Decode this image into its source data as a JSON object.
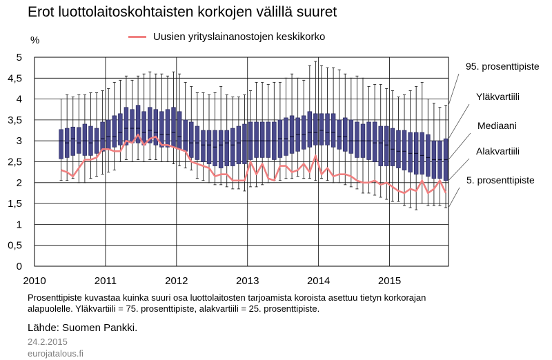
{
  "title": "Erot luottolaitoskohtaisten korkojen välillä suuret",
  "footer": {
    "note_line1": "Prosenttipiste kuvastaa kuinka suuri osa luottolaitosten tarjoamista koroista asettuu tietyn korkorajan",
    "note_line2": "alapuolelle. Yläkvartiili = 75. prosenttipiste, alakvartiili = 25. prosenttipiste.",
    "source": "Lähde: Suomen Pankki.",
    "date": "24.2.2015",
    "site": "eurojatalous.fi"
  },
  "colors": {
    "box_fill": "#4a4a8c",
    "box_stroke": "#1f1f55",
    "line": "#f08080",
    "whisker": "#222222",
    "grid": "#000000"
  },
  "chart_data": {
    "type": "line",
    "title": "Erot luottolaitoskohtaisten korkojen välillä suuret",
    "ylabel": "%",
    "ylim": [
      0,
      5
    ],
    "yticks": [
      "0",
      "0,5",
      "1",
      "1,5",
      "2",
      "2,5",
      "3",
      "3,5",
      "4",
      "4,5",
      "5"
    ],
    "xlim": [
      2010.0,
      2015.83
    ],
    "xticks": [
      "2010",
      "2011",
      "2012",
      "2013",
      "2014",
      "2015"
    ],
    "grid": true,
    "legend": "top",
    "box_labels": [
      "95. prosenttipiste",
      "Yläkvartiili",
      "Mediaani",
      "Alakvartiili",
      "5. prosenttipiste"
    ],
    "series_name": "Uusien yrityslainanostojen keskikorko",
    "months": [
      "2010-05",
      "2010-06",
      "2010-07",
      "2010-08",
      "2010-09",
      "2010-10",
      "2010-11",
      "2010-12",
      "2011-01",
      "2011-02",
      "2011-03",
      "2011-04",
      "2011-05",
      "2011-06",
      "2011-07",
      "2011-08",
      "2011-09",
      "2011-10",
      "2011-11",
      "2011-12",
      "2012-01",
      "2012-02",
      "2012-03",
      "2012-04",
      "2012-05",
      "2012-06",
      "2012-07",
      "2012-08",
      "2012-09",
      "2012-10",
      "2012-11",
      "2012-12",
      "2013-01",
      "2013-02",
      "2013-03",
      "2013-04",
      "2013-05",
      "2013-06",
      "2013-07",
      "2013-08",
      "2013-09",
      "2013-10",
      "2013-11",
      "2013-12",
      "2014-01",
      "2014-02",
      "2014-03",
      "2014-04",
      "2014-05",
      "2014-06",
      "2014-07",
      "2014-08",
      "2014-09",
      "2014-10",
      "2014-11",
      "2014-12",
      "2015-01",
      "2015-02",
      "2015-03",
      "2015-04",
      "2015-05",
      "2015-06",
      "2015-07",
      "2015-08",
      "2015-09",
      "2015-10"
    ],
    "p95": [
      4.0,
      4.1,
      4.05,
      4.1,
      4.1,
      4.15,
      4.15,
      4.2,
      4.25,
      4.4,
      4.45,
      4.55,
      4.45,
      4.55,
      4.6,
      4.65,
      4.6,
      4.6,
      4.55,
      4.65,
      4.6,
      4.4,
      4.3,
      4.15,
      4.15,
      4.1,
      4.15,
      4.3,
      4.1,
      4.05,
      4.05,
      4.1,
      4.2,
      4.4,
      4.4,
      4.35,
      4.4,
      4.4,
      4.5,
      4.6,
      4.5,
      4.45,
      4.8,
      4.9,
      4.8,
      4.75,
      4.75,
      4.7,
      4.6,
      4.5,
      4.55,
      4.5,
      4.3,
      4.35,
      4.35,
      4.25,
      4.2,
      4.05,
      4.1,
      4.2,
      4.3,
      4.4,
      4.0,
      3.9,
      3.8,
      3.85
    ],
    "q75": [
      3.27,
      3.3,
      3.33,
      3.32,
      3.4,
      3.35,
      3.3,
      3.45,
      3.5,
      3.6,
      3.65,
      3.8,
      3.75,
      3.85,
      3.7,
      3.8,
      3.75,
      3.7,
      3.75,
      3.8,
      3.7,
      3.5,
      3.45,
      3.35,
      3.25,
      3.25,
      3.25,
      3.25,
      3.25,
      3.3,
      3.35,
      3.4,
      3.45,
      3.45,
      3.45,
      3.45,
      3.45,
      3.5,
      3.55,
      3.6,
      3.55,
      3.6,
      3.7,
      3.65,
      3.65,
      3.65,
      3.65,
      3.5,
      3.55,
      3.5,
      3.45,
      3.4,
      3.45,
      3.45,
      3.35,
      3.35,
      3.3,
      3.25,
      3.25,
      3.2,
      3.2,
      3.2,
      3.15,
      3.0,
      3.0,
      3.05
    ],
    "median": [
      3.0,
      2.95,
      3.05,
      2.95,
      3.0,
      2.95,
      3.0,
      3.05,
      3.1,
      3.1,
      3.2,
      3.3,
      3.3,
      3.3,
      3.2,
      3.25,
      3.2,
      3.15,
      3.15,
      3.2,
      3.1,
      3.0,
      2.95,
      2.95,
      2.9,
      2.9,
      2.85,
      2.9,
      2.95,
      2.9,
      2.95,
      3.0,
      3.0,
      3.0,
      3.0,
      3.0,
      3.0,
      3.05,
      3.05,
      3.1,
      3.15,
      3.15,
      3.2,
      3.2,
      3.25,
      3.2,
      3.2,
      3.1,
      3.1,
      3.0,
      3.0,
      3.0,
      3.0,
      2.95,
      2.95,
      2.9,
      2.8,
      2.75,
      2.75,
      2.7,
      2.7,
      2.65,
      2.6,
      2.55,
      2.55,
      2.55
    ],
    "q25": [
      2.57,
      2.6,
      2.65,
      2.7,
      2.65,
      2.65,
      2.7,
      2.75,
      2.8,
      2.85,
      2.9,
      2.9,
      2.95,
      2.95,
      2.9,
      2.95,
      2.9,
      2.85,
      2.85,
      2.85,
      2.8,
      2.75,
      2.6,
      2.55,
      2.5,
      2.45,
      2.4,
      2.35,
      2.4,
      2.4,
      2.45,
      2.45,
      2.55,
      2.6,
      2.6,
      2.6,
      2.55,
      2.6,
      2.65,
      2.7,
      2.75,
      2.8,
      2.85,
      2.9,
      2.9,
      2.9,
      2.85,
      2.8,
      2.75,
      2.7,
      2.6,
      2.6,
      2.55,
      2.5,
      2.4,
      2.4,
      2.4,
      2.35,
      2.3,
      2.25,
      2.2,
      2.2,
      2.15,
      2.1,
      2.1,
      2.05
    ],
    "p5": [
      2.05,
      2.05,
      2.1,
      2.0,
      2.0,
      2.1,
      2.15,
      2.2,
      2.25,
      2.3,
      2.5,
      2.55,
      2.5,
      2.55,
      2.5,
      2.55,
      2.55,
      2.5,
      2.5,
      2.45,
      2.4,
      2.35,
      2.3,
      2.1,
      2.05,
      2.0,
      1.95,
      1.95,
      1.9,
      1.85,
      1.85,
      1.8,
      1.9,
      1.9,
      1.95,
      2.0,
      2.05,
      2.05,
      2.1,
      2.1,
      2.15,
      2.1,
      2.1,
      2.05,
      2.1,
      2.05,
      2.0,
      2.0,
      1.95,
      1.9,
      1.85,
      1.75,
      1.75,
      1.7,
      1.65,
      1.6,
      1.55,
      1.55,
      1.45,
      1.4,
      1.35,
      1.5,
      1.45,
      1.45,
      1.45,
      1.4
    ],
    "avg_rate": [
      2.3,
      2.25,
      2.15,
      2.35,
      2.55,
      2.55,
      2.6,
      2.8,
      2.8,
      2.75,
      2.75,
      3.0,
      2.95,
      3.15,
      2.9,
      3.05,
      3.1,
      2.9,
      2.9,
      2.85,
      2.8,
      2.75,
      2.5,
      2.45,
      2.4,
      2.35,
      2.15,
      2.2,
      2.2,
      2.05,
      2.05,
      2.05,
      2.5,
      2.2,
      2.45,
      2.1,
      2.05,
      2.4,
      2.4,
      2.25,
      2.3,
      2.45,
      2.25,
      2.65,
      2.2,
      2.35,
      2.15,
      2.2,
      2.2,
      2.15,
      2.05,
      2.0,
      2.0,
      2.05,
      1.95,
      2.0,
      1.9,
      1.8,
      1.75,
      1.85,
      1.8,
      2.05,
      1.75,
      1.85,
      2.05,
      1.75
    ]
  }
}
